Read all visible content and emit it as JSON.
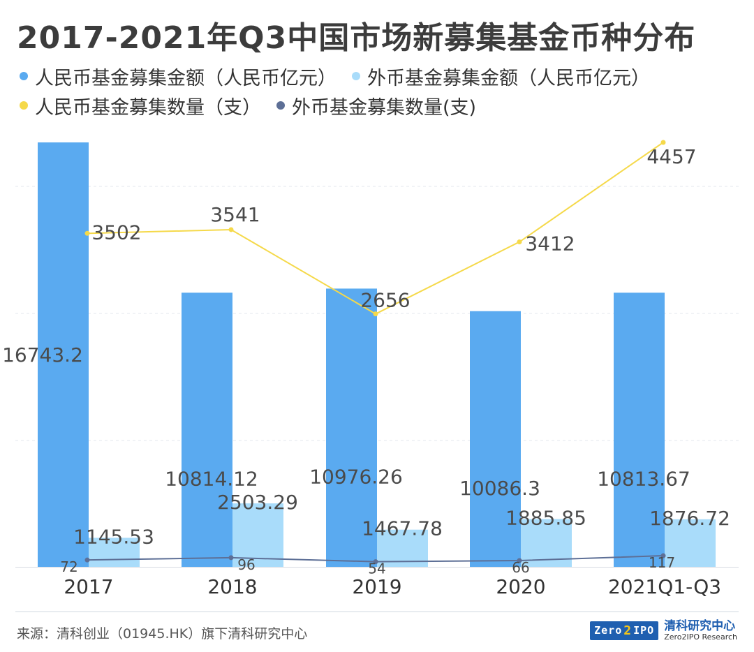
{
  "chart_data": {
    "type": "bar",
    "title": "2017-2021年Q3中国市场新募集基金币种分布",
    "categories": [
      "2017",
      "2018",
      "2019",
      "2020",
      "2021Q1-Q3"
    ],
    "series": [
      {
        "name": "人民币基金募集金额（人民币亿元）",
        "kind": "bar",
        "axis": "amount",
        "color": "#5aaaf0",
        "values": [
          16743.2,
          10814.12,
          10976.26,
          10086.3,
          10813.67
        ],
        "labels": [
          "16743.2",
          "10814.12",
          "10976.26",
          "10086.3",
          "10813.67"
        ]
      },
      {
        "name": "外币基金募集金额（人民币亿元）",
        "kind": "bar",
        "axis": "amount",
        "color": "#a9dcfa",
        "values": [
          1145.53,
          2503.29,
          1467.78,
          1885.85,
          1876.72
        ],
        "labels": [
          "1145.53",
          "2503.29",
          "1467.78",
          "1885.85",
          "1876.72"
        ]
      },
      {
        "name": "人民币基金募集数量（支）",
        "kind": "line",
        "axis": "count",
        "color": "#f5d94a",
        "values": [
          3502,
          3541,
          2656,
          3412,
          4457
        ],
        "labels": [
          "3502",
          "3541",
          "2656",
          "3412",
          "4457"
        ]
      },
      {
        "name": "外币基金募集数量(支)",
        "kind": "line",
        "axis": "count",
        "color": "#5d6f96",
        "values": [
          72,
          96,
          54,
          66,
          117
        ],
        "labels": [
          "72",
          "96",
          "54",
          "66",
          "117"
        ]
      }
    ],
    "amount_axis_range": [
      0,
      17000
    ],
    "count_axis_range": [
      0,
      5000
    ],
    "grid": true,
    "legend_position": "top"
  },
  "legend": {
    "rows": [
      [
        0,
        1
      ],
      [
        2,
        3
      ]
    ]
  },
  "footer": {
    "source": "来源：清科创业（01945.HK）旗下清科研究中心",
    "logo_badge_left": "Zero",
    "logo_badge_mid": "2",
    "logo_badge_right": "IPO",
    "logo_cn": "清科研究中心",
    "logo_en": "Zero2IPO Research"
  }
}
